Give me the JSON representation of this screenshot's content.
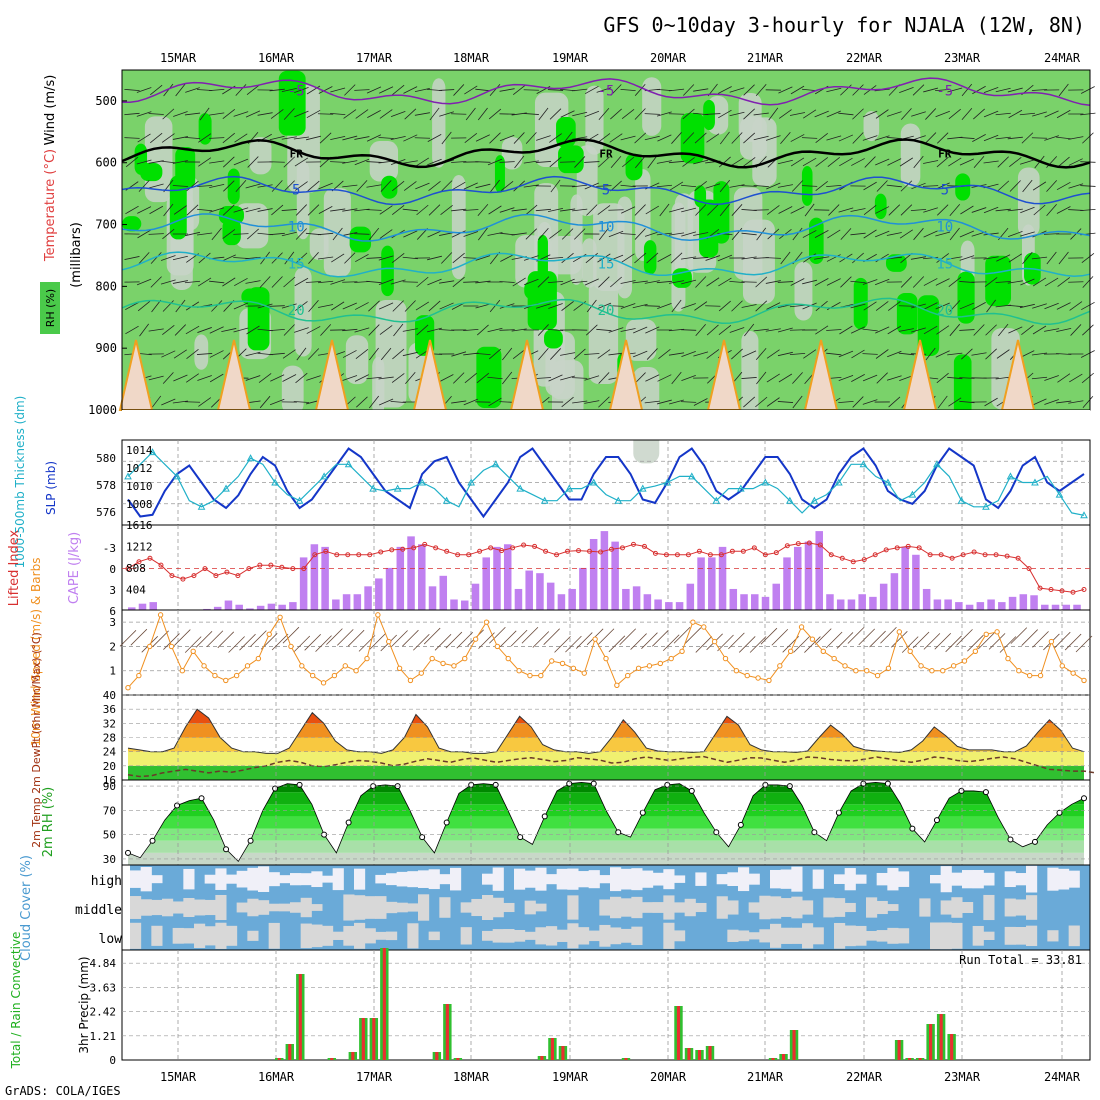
{
  "title": "GFS 0~10day 3-hourly for NJALA (12W, 8N)",
  "credit": "GrADS: COLA/IGES",
  "colors": {
    "rh_green": "#00e000",
    "rh_mid": "#7ad26a",
    "rh_light": "#c8d4c8",
    "slp": "#1436c8",
    "thickness": "#20b0c8",
    "lifted_index": "#d83030",
    "cape": "#c080f0",
    "wind_speed": "#f09020",
    "cloud_blue": "#6aaad8",
    "cloud_white": "#f0f0f8",
    "cloud_gray": "#d8d8d8",
    "precip_total": "#30c030",
    "precip_conv": "#e83030"
  },
  "chart_data": [
    {
      "type": "area",
      "panel": "upper-air",
      "time_labels": [
        "15MAR",
        "16MAR",
        "17MAR",
        "18MAR",
        "19MAR",
        "20MAR",
        "21MAR",
        "22MAR",
        "23MAR",
        "24MAR"
      ],
      "ylabel": "(millibars)",
      "legend": [
        "Wind (m/s)",
        "Temperature (°C)",
        "RH (%)"
      ],
      "yticks": [
        500,
        600,
        700,
        800,
        900,
        1000
      ],
      "ylim": [
        450,
        1000
      ],
      "isotherms": [
        {
          "label": "-5",
          "level_mb": 485
        },
        {
          "label": "FR",
          "level_mb": 585
        },
        {
          "label": "5",
          "level_mb": 645
        },
        {
          "label": "10",
          "level_mb": 705
        },
        {
          "label": "15",
          "level_mb": 765
        },
        {
          "label": "20",
          "level_mb": 840
        }
      ]
    },
    {
      "type": "line",
      "panel": "slp-thickness",
      "ylabel_left": "1000-500mb Thickness (dm)",
      "ylabel_right": "SLP (mb)",
      "left_ticks": [
        "580",
        "578",
        "576"
      ],
      "right_ticks": [
        "1014",
        "1012",
        "1010",
        "1008"
      ],
      "ylim_slp": [
        1006,
        1016
      ],
      "series": [
        {
          "name": "SLP",
          "values": [
            1009,
            1007,
            1007.2,
            1010,
            1012,
            1013,
            1011,
            1009,
            1008,
            1009.5,
            1012,
            1014,
            1013,
            1010,
            1008,
            1009,
            1011,
            1013,
            1015,
            1014,
            1012,
            1010,
            1009,
            1008,
            1012,
            1013.5,
            1014,
            1011,
            1009,
            1007,
            1009,
            1011,
            1014,
            1015,
            1013,
            1011,
            1009,
            1009,
            1012,
            1014,
            1014,
            1012,
            1009,
            1008.6,
            1011,
            1014,
            1015,
            1013,
            1010,
            1009,
            1010,
            1012,
            1014,
            1014,
            1012,
            1009,
            1008,
            1009,
            1012,
            1014,
            1015,
            1013,
            1010,
            1009,
            1008.5,
            1010,
            1013,
            1015,
            1014,
            1013,
            1009,
            1008,
            1010,
            1013,
            1014,
            1011,
            1010,
            1011,
            1012
          ]
        },
        {
          "name": "Thickness",
          "values": [
            579,
            580,
            581,
            580,
            579,
            577,
            576.5,
            577,
            578,
            579,
            580.5,
            580,
            578.5,
            577.5,
            577,
            578,
            579,
            580,
            580,
            579,
            578,
            577.8,
            578,
            578,
            578.5,
            578,
            577,
            576.5,
            578.5,
            579.5,
            580,
            579,
            578,
            577.5,
            577,
            577,
            578,
            578,
            578.5,
            577.5,
            577,
            577,
            578,
            578.2,
            578.5,
            579,
            579,
            578,
            577,
            578,
            578,
            578,
            578.5,
            578,
            577,
            576,
            577,
            577.5,
            578.5,
            580,
            580,
            579,
            578.5,
            577,
            577.5,
            578.5,
            580,
            579,
            577,
            576.5,
            576.5,
            577,
            579,
            578.5,
            578.5,
            579,
            577.5,
            576,
            575.8
          ]
        }
      ]
    },
    {
      "type": "bar",
      "panel": "lifted-index-cape",
      "ylabel_left": "Lifted Index",
      "ylabel_right": "CAPE (J/kg)",
      "left_ticks": [
        "-3",
        "0",
        "3",
        "6"
      ],
      "right_ticks": [
        "1616",
        "1212",
        "808",
        "404"
      ],
      "ylim_cape": [
        0,
        1616
      ],
      "series": [
        {
          "name": "CAPE",
          "values": [
            50,
            120,
            150,
            0,
            0,
            0,
            0,
            20,
            60,
            180,
            100,
            30,
            80,
            120,
            100,
            150,
            1000,
            1250,
            1200,
            200,
            300,
            300,
            450,
            600,
            800,
            1200,
            1400,
            1250,
            450,
            650,
            200,
            180,
            500,
            1000,
            1200,
            1250,
            400,
            750,
            700,
            520,
            300,
            400,
            800,
            1350,
            1500,
            1300,
            400,
            450,
            300,
            200,
            150,
            150,
            500,
            1000,
            1000,
            1200,
            400,
            300,
            300,
            250,
            500,
            1000,
            1200,
            1300,
            1500,
            300,
            200,
            200,
            300,
            250,
            500,
            700,
            1200,
            1050,
            400,
            200,
            200,
            150,
            100,
            150,
            200,
            150,
            250,
            300,
            280,
            100,
            100,
            100,
            100
          ]
        },
        {
          "name": "Lifted Index",
          "values": [
            0,
            -1,
            -1.5,
            -0.5,
            1,
            1.5,
            1,
            0,
            1,
            0.5,
            1,
            0,
            -0.5,
            -0.5,
            -0.2,
            0,
            0,
            -2,
            -2.5,
            -2,
            -2,
            -2,
            -2,
            -2.4,
            -2.7,
            -2.8,
            -3,
            -3.5,
            -3,
            -2.5,
            -2,
            -2,
            -2.5,
            -3,
            -2.6,
            -3,
            -3.4,
            -3.2,
            -2.5,
            -2,
            -2.5,
            -2.6,
            -2.5,
            -2.4,
            -2.8,
            -3,
            -3.5,
            -3.2,
            -2.2,
            -2,
            -2,
            -2,
            -2.5,
            -2,
            -2,
            -2.5,
            -2.5,
            -3,
            -2,
            -2.3,
            -3.3,
            -3.6,
            -3.7,
            -3.4,
            -2,
            -1.5,
            -1,
            -1.3,
            -2,
            -2.7,
            -3,
            -3.2,
            -3,
            -2,
            -2,
            -1.5,
            -2,
            -2.4,
            -2,
            -2,
            -1.8,
            -1.5,
            0,
            2.8,
            3,
            3.2,
            3.4,
            3
          ]
        }
      ]
    },
    {
      "type": "line",
      "panel": "10m-wind",
      "ylabel": "10m Wind Speed (m/s) & Barbs",
      "yticks": [
        "3",
        "2",
        "1"
      ],
      "ylim": [
        0,
        3.5
      ],
      "series": [
        {
          "name": "Wind Speed",
          "values": [
            0.3,
            0.8,
            2,
            3.3,
            2,
            1,
            1.8,
            1.2,
            0.8,
            0.6,
            0.8,
            1.2,
            1.5,
            2.5,
            3.2,
            2,
            1.2,
            0.8,
            0.5,
            0.8,
            1.2,
            1,
            1.5,
            3.3,
            2.2,
            1.1,
            0.6,
            0.9,
            1.5,
            1.3,
            1.2,
            1.5,
            2.3,
            3,
            2,
            1.5,
            1,
            0.8,
            0.8,
            1.4,
            1.3,
            1.1,
            0.9,
            2.3,
            1.5,
            0.4,
            0.8,
            1.1,
            1.2,
            1.3,
            1.5,
            1.8,
            3,
            2.8,
            2.2,
            1.5,
            1,
            0.8,
            0.7,
            0.6,
            1.2,
            1.8,
            2.8,
            2.3,
            1.8,
            1.5,
            1.2,
            1,
            1,
            0.8,
            1.1,
            2.6,
            1.8,
            1.2,
            1,
            1,
            1.2,
            1.4,
            1.8,
            2.5,
            2.6,
            1.5,
            1,
            0.8,
            0.8,
            2.2,
            1.2,
            0.9,
            0.6
          ]
        }
      ]
    },
    {
      "type": "area",
      "panel": "2m-temp",
      "ylabel": "2m Temp 2m DewPt (6hr Min/Max) (°C)",
      "yticks": [
        "40",
        "36",
        "32",
        "28",
        "24",
        "20",
        "16"
      ],
      "ylim": [
        16,
        40
      ],
      "series": [
        {
          "name": "Temp",
          "values": [
            25,
            24.5,
            24,
            24,
            25,
            31,
            36,
            33.5,
            28,
            25,
            24,
            24,
            23.5,
            23.5,
            25,
            30,
            35,
            32,
            27,
            24.5,
            24,
            24,
            23.5,
            24.5,
            28,
            34.5,
            31,
            25,
            24,
            24,
            23.5,
            23.5,
            24,
            29,
            34,
            31,
            26,
            24.5,
            24,
            24,
            23.5,
            24,
            28,
            33,
            29.5,
            25,
            24.2,
            24,
            24,
            23.8,
            24,
            29,
            34,
            31.5,
            26,
            24.5,
            24,
            24,
            23.8,
            24.2,
            28,
            31.5,
            29,
            25.5,
            24.5,
            24.2,
            24,
            23.8,
            24.5,
            27,
            31,
            28.5,
            25.5,
            24.5,
            24.5,
            24.5,
            24,
            24,
            25.6,
            29.5,
            33,
            30,
            25,
            24
          ]
        },
        {
          "name": "DewPt",
          "values": [
            17.5,
            17,
            17.2,
            18,
            18.5,
            19,
            18.5,
            18,
            18.5,
            18.2,
            18.8,
            19.5,
            20,
            21,
            21.5,
            21,
            20,
            19.8,
            20.3,
            21,
            21.5,
            21.3,
            20.8,
            20,
            20.5,
            21.3,
            22,
            21.5,
            21,
            21.8,
            22.2,
            21.6,
            21,
            21.5,
            22,
            22.3,
            21.8,
            21.2,
            21.5,
            22.3,
            22,
            21.6,
            20.8,
            21,
            22,
            22.5,
            22,
            21.5,
            22,
            22.4,
            22.6,
            21.8,
            21,
            21.6,
            22.3,
            22.2,
            21.6,
            21,
            21.6,
            22.5,
            22.3,
            21.8,
            21.5,
            21.4,
            21.9,
            22.5,
            22,
            21.4,
            21,
            21.6,
            22.5,
            22.2,
            21.5,
            21.2,
            21.6,
            22.1,
            22.5,
            22,
            21,
            20,
            19,
            18.8,
            18.5,
            18.5,
            18
          ]
        }
      ]
    },
    {
      "type": "area",
      "panel": "2m-rh",
      "ylabel": "2m RH (%)",
      "yticks": [
        "90",
        "70",
        "50",
        "30"
      ],
      "ylim": [
        25,
        95
      ],
      "series": [
        {
          "name": "RH",
          "values": [
            35,
            31,
            45,
            62,
            74,
            78,
            80,
            62,
            38,
            28,
            45,
            70,
            88,
            92,
            91,
            75,
            50,
            35,
            60,
            82,
            90,
            91,
            90,
            70,
            48,
            35,
            60,
            84,
            91,
            92,
            91,
            70,
            48,
            42,
            65,
            86,
            92,
            93,
            92,
            70,
            52,
            48,
            68,
            87,
            91,
            92,
            86,
            68,
            52,
            40,
            58,
            82,
            91,
            91,
            90,
            74,
            52,
            45,
            68,
            86,
            92,
            93,
            92,
            76,
            55,
            44,
            62,
            80,
            86,
            86,
            85,
            64,
            46,
            40,
            44,
            58,
            68,
            75,
            80
          ]
        }
      ]
    },
    {
      "type": "heatmap",
      "panel": "cloud-cover",
      "ylabel": "Cloud Cover (%)",
      "rows": [
        "high",
        "middle",
        "low"
      ]
    },
    {
      "type": "bar",
      "panel": "precip",
      "ylabel": "3hr Precip (mm)",
      "ylabel_side": "Total / Rain Convective",
      "yticks": [
        "4.84",
        "3.63",
        "2.42",
        "1.21",
        "0"
      ],
      "ylim": [
        0,
        5.5
      ],
      "run_total_label": "Run Total = 33.81",
      "series": [
        {
          "name": "Total",
          "values": [
            0,
            0,
            0,
            0,
            0,
            0,
            0,
            0,
            0,
            0,
            0,
            0,
            0,
            0,
            0.1,
            0.8,
            4.3,
            0,
            0,
            0.1,
            0,
            0.4,
            2.1,
            2.1,
            5.6,
            0,
            0,
            0,
            0,
            0.4,
            2.8,
            0.1,
            0,
            0,
            0,
            0,
            0,
            0,
            0,
            0.2,
            1.1,
            0.7,
            0,
            0,
            0,
            0,
            0,
            0.1,
            0,
            0,
            0,
            0,
            2.7,
            0.6,
            0.5,
            0.7,
            0,
            0,
            0,
            0,
            0,
            0.1,
            0.3,
            1.5,
            0,
            0,
            0,
            0,
            0,
            0,
            0,
            0,
            0,
            1,
            0.1,
            0.1,
            1.8,
            2.3,
            1.3,
            0,
            0,
            0,
            0,
            0,
            0,
            0,
            0,
            0,
            0,
            0,
            0
          ]
        }
      ]
    }
  ]
}
